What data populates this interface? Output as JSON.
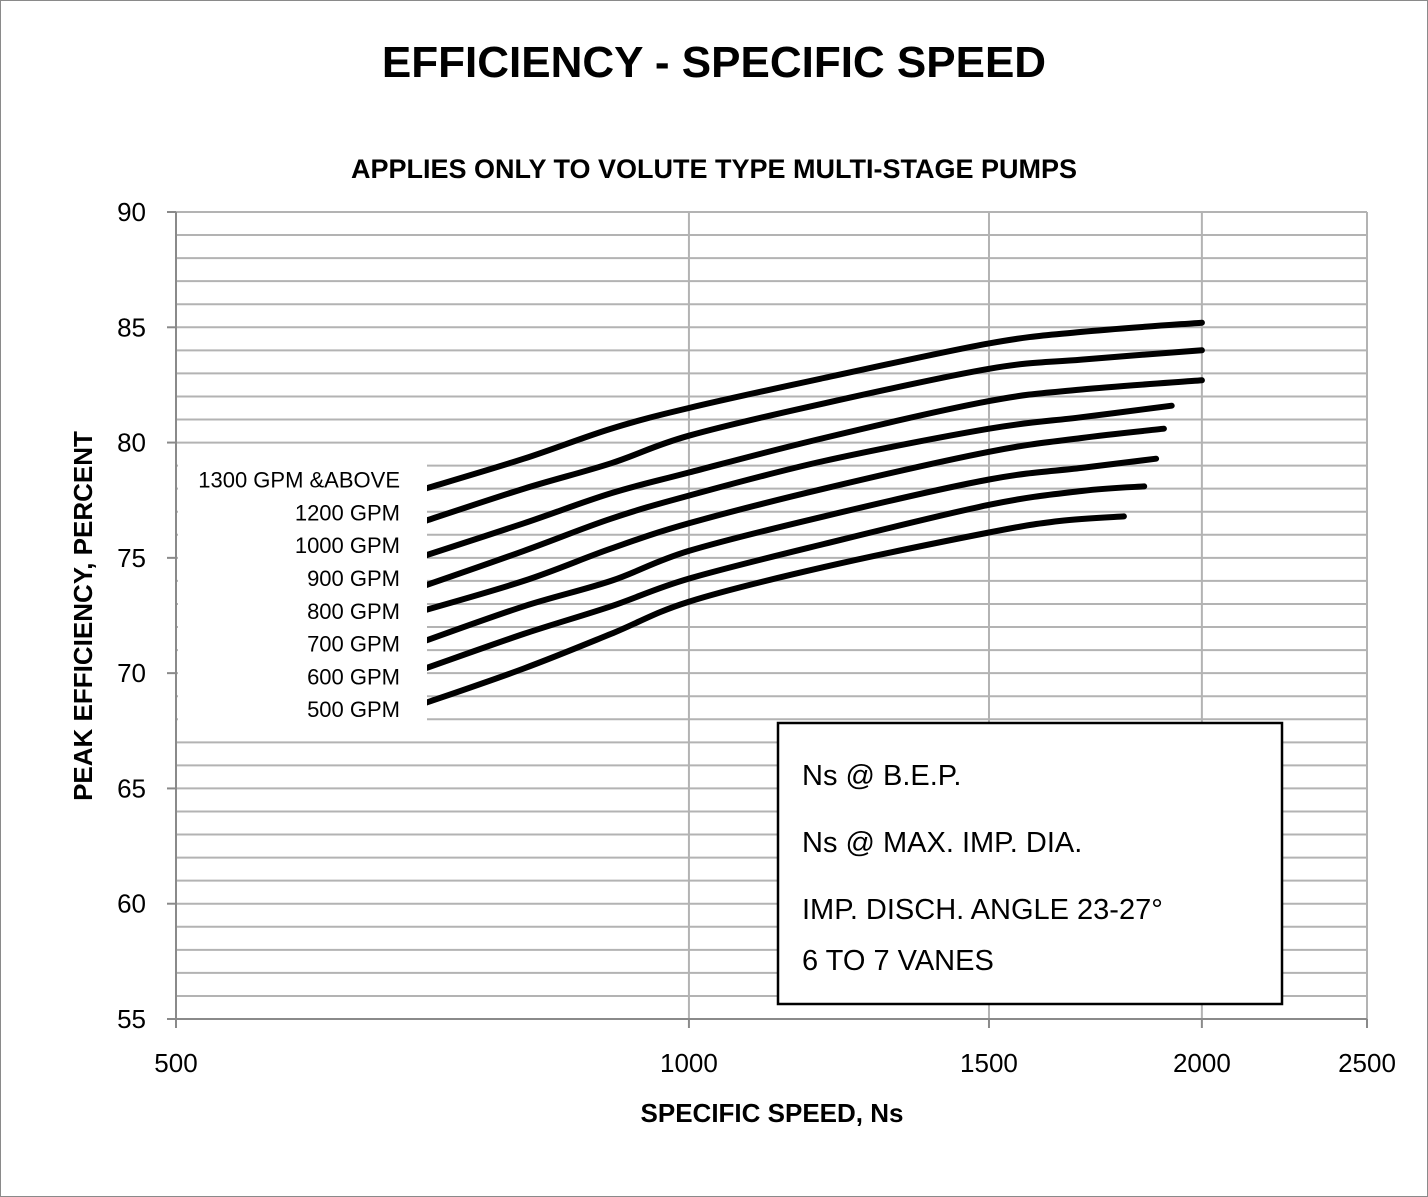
{
  "chart_data": {
    "type": "line",
    "title": "EFFICIENCY - SPECIFIC SPEED",
    "subtitle": "APPLIES ONLY TO VOLUTE TYPE MULTI-STAGE PUMPS",
    "xlabel": "SPECIFIC SPEED, Ns",
    "ylabel": "PEAK EFFICIENCY, PERCENT",
    "xscale": "log",
    "xlim": [
      500,
      2500
    ],
    "ylim": [
      55,
      90
    ],
    "xticks": [
      "500",
      "1000",
      "1500",
      "2000",
      "2500"
    ],
    "yticks": [
      "55",
      "60",
      "65",
      "70",
      "75",
      "80",
      "85",
      "90"
    ],
    "grid": true,
    "series": [
      {
        "name": "1300 GPM  &ABOVE",
        "x": [
          700,
          800,
          900,
          1000,
          1200,
          1500,
          1700,
          2000
        ],
        "y": [
          78.0,
          79.3,
          80.6,
          81.5,
          82.8,
          84.3,
          84.8,
          85.2
        ]
      },
      {
        "name": "1200 GPM",
        "x": [
          700,
          800,
          900,
          1000,
          1200,
          1500,
          1700,
          2000
        ],
        "y": [
          76.6,
          78.0,
          79.1,
          80.3,
          81.7,
          83.2,
          83.6,
          84.0
        ]
      },
      {
        "name": "1000 GPM",
        "x": [
          700,
          800,
          900,
          1000,
          1200,
          1500,
          1700,
          2000
        ],
        "y": [
          75.1,
          76.5,
          77.8,
          78.7,
          80.2,
          81.8,
          82.3,
          82.7
        ]
      },
      {
        "name": "900 GPM",
        "x": [
          700,
          800,
          900,
          1000,
          1200,
          1500,
          1700,
          1920
        ],
        "y": [
          73.8,
          75.3,
          76.7,
          77.7,
          79.2,
          80.6,
          81.1,
          81.6
        ]
      },
      {
        "name": "800 GPM",
        "x": [
          690,
          800,
          900,
          1000,
          1200,
          1500,
          1700,
          1900
        ],
        "y": [
          72.6,
          74.0,
          75.4,
          76.5,
          78.0,
          79.6,
          80.2,
          80.6
        ]
      },
      {
        "name": "700 GPM",
        "x": [
          700,
          800,
          900,
          1000,
          1200,
          1500,
          1700,
          1880
        ],
        "y": [
          71.4,
          72.9,
          74.0,
          75.3,
          76.8,
          78.4,
          78.9,
          79.3
        ]
      },
      {
        "name": "600 GPM",
        "x": [
          700,
          800,
          900,
          1000,
          1200,
          1500,
          1700,
          1850
        ],
        "y": [
          70.2,
          71.7,
          72.9,
          74.1,
          75.6,
          77.3,
          77.9,
          78.1
        ]
      },
      {
        "name": "500 GPM",
        "x": [
          700,
          800,
          900,
          1000,
          1200,
          1500,
          1650,
          1800
        ],
        "y": [
          68.7,
          70.2,
          71.7,
          73.1,
          74.6,
          76.1,
          76.6,
          76.8
        ]
      }
    ],
    "annotations": [
      "Ns @ B.E.P.",
      "Ns @ MAX. IMP. DIA.",
      "IMP. DISCH. ANGLE 23-27°",
      "6 TO 7 VANES"
    ]
  }
}
